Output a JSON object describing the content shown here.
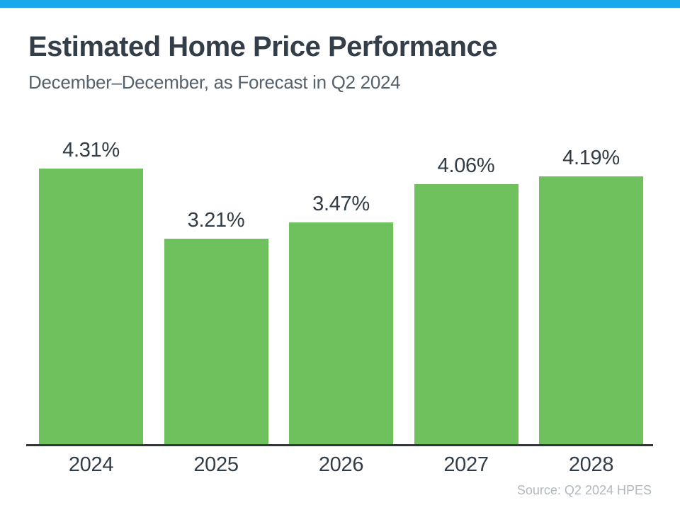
{
  "page": {
    "background": "#FFFFFF",
    "top_strip_color": "#18A9EC"
  },
  "header": {
    "title": "Estimated Home Price Performance",
    "subtitle": "December–December, as Forecast in Q2 2024",
    "title_color": "#333E48",
    "subtitle_color": "#55626C"
  },
  "footer": {
    "source": "Source: Q2 2024 HPES",
    "source_color": "#AFB9C0"
  },
  "chart_data": {
    "type": "bar",
    "categories": [
      "2024",
      "2025",
      "2026",
      "2027",
      "2028"
    ],
    "values": [
      4.31,
      3.21,
      3.47,
      4.06,
      4.19
    ],
    "labels": [
      "4.31%",
      "3.21%",
      "3.47%",
      "4.06%",
      "4.19%"
    ],
    "title": "Estimated Home Price Performance",
    "subtitle": "December–December, as Forecast in Q2 2024",
    "xlabel": "",
    "ylabel": "",
    "ylim": [
      0,
      4.85
    ],
    "grid": false,
    "legend": false,
    "data_labels": true,
    "bar_color": "#6EC15C",
    "value_label_color": "#323C46",
    "tick_label_color": "#323C46",
    "axis_line_color": "#2F363C",
    "source": "Source: Q2 2024 HPES"
  }
}
